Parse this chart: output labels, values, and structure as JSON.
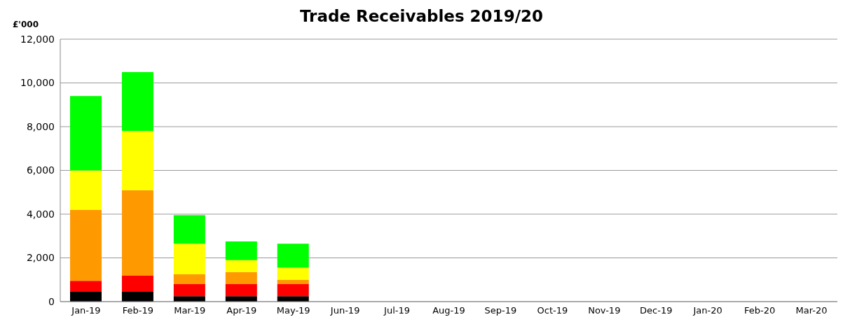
{
  "chart_data": {
    "type": "bar",
    "title": "Trade Receivables 2019/20",
    "ylabel": "£'000",
    "stacked": true,
    "grid": "y",
    "legend": false,
    "categories": [
      "Jan-19",
      "Feb-19",
      "Mar-19",
      "Apr-19",
      "May-19",
      "Jun-19",
      "Jul-19",
      "Aug-19",
      "Sep-19",
      "Oct-19",
      "Nov-19",
      "Dec-19",
      "Jan-20",
      "Feb-20",
      "Mar-20"
    ],
    "series": [
      {
        "color": "#000000",
        "values": [
          450,
          450,
          250,
          250,
          250,
          null,
          null,
          null,
          null,
          null,
          null,
          null,
          null,
          null,
          null
        ]
      },
      {
        "color": "#ff0000",
        "values": [
          500,
          750,
          550,
          550,
          550,
          null,
          null,
          null,
          null,
          null,
          null,
          null,
          null,
          null,
          null
        ]
      },
      {
        "color": "#ff9900",
        "values": [
          3250,
          3900,
          450,
          550,
          200,
          null,
          null,
          null,
          null,
          null,
          null,
          null,
          null,
          null,
          null
        ]
      },
      {
        "color": "#ffff00",
        "values": [
          1800,
          2700,
          1400,
          550,
          550,
          null,
          null,
          null,
          null,
          null,
          null,
          null,
          null,
          null,
          null
        ]
      },
      {
        "color": "#00ff00",
        "values": [
          3400,
          2700,
          1300,
          850,
          1100,
          null,
          null,
          null,
          null,
          null,
          null,
          null,
          null,
          null,
          null
        ]
      }
    ],
    "ylim": [
      0,
      12000
    ],
    "yticks": [
      0,
      {
        "value": 2000,
        "label": "2,000"
      },
      {
        "value": 4000,
        "label": "4,000"
      },
      {
        "value": 6000,
        "label": "6,000"
      },
      {
        "value": 8000,
        "label": "8,000"
      },
      {
        "value": 10000,
        "label": "10,000"
      },
      {
        "value": 12000,
        "label": "12,000"
      }
    ]
  }
}
